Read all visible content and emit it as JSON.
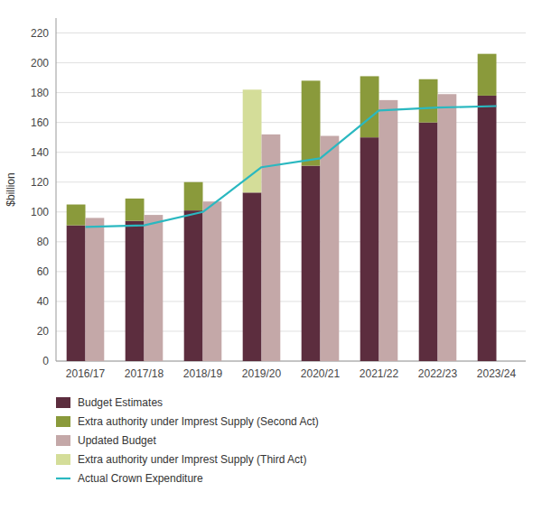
{
  "chart_data": {
    "type": "bar",
    "y_label": "$billion",
    "categories": [
      "2016/17",
      "2017/18",
      "2018/19",
      "2019/20",
      "2020/21",
      "2021/22",
      "2022/23",
      "2023/24"
    ],
    "series": [
      {
        "name": "Budget Estimates",
        "type": "stacked_bar",
        "color": "#5c2d3e",
        "values": [
          91,
          94,
          101,
          113,
          131,
          150,
          160,
          178
        ]
      },
      {
        "name": "Extra authority under Imprest Supply (Second Act)",
        "type": "stacked_bar",
        "color": "#8a9a3b",
        "values": [
          14,
          15,
          19,
          0,
          57,
          41,
          29,
          28
        ]
      },
      {
        "name": "Updated Budget",
        "type": "bar",
        "color": "#c4a8a8",
        "values": [
          96,
          98,
          107,
          152,
          151,
          175,
          179,
          0
        ]
      },
      {
        "name": "Extra authority under Imprest Supply (Third Act)",
        "type": "stacked_bar",
        "color": "#d4dd99",
        "values": [
          0,
          0,
          0,
          69,
          0,
          0,
          0,
          0
        ]
      },
      {
        "name": "Actual Crown Expenditure",
        "type": "line",
        "color": "#2ab8c0",
        "values": [
          90,
          91,
          100,
          130,
          136,
          168,
          170,
          171
        ]
      }
    ],
    "ylim": [
      0,
      230
    ],
    "yticks": [
      0,
      20,
      40,
      60,
      80,
      100,
      120,
      140,
      160,
      180,
      200,
      220
    ],
    "grid": true,
    "legend": "bottom"
  }
}
